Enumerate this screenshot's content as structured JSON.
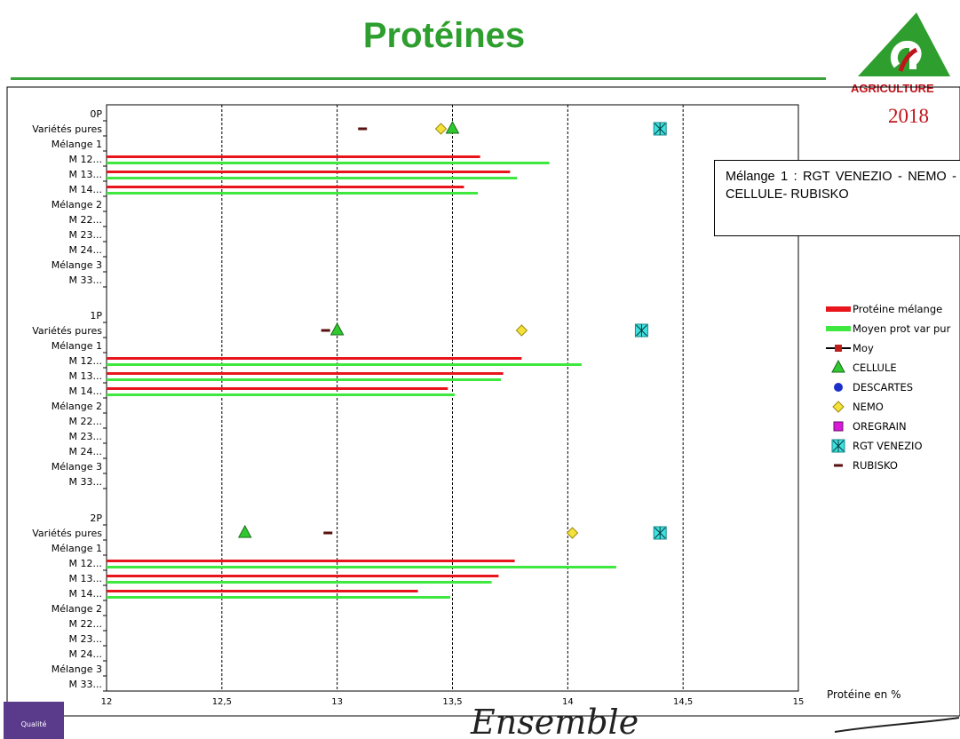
{
  "header": {
    "title": "Protéines",
    "logo_text": "AGRICULTURE",
    "year": "2018"
  },
  "annotation": "Mélange 1 : RGT VENEZIO - NEMO - CELLULE- RUBISKO",
  "footer": {
    "badge_text": "Qualité",
    "script_text": "Ensemble"
  },
  "colors": {
    "title": "#2e9e2e",
    "melange": "#e8161c",
    "var_pur": "#3ee83e",
    "moy": "#c0201c",
    "cellule": "#2fc82f",
    "descartes": "#1c2fc8",
    "nemo": "#f3e23a",
    "oregrain": "#d81ad8",
    "rgt_venezio": "#3ee0e0",
    "rubisko": "#5a1010"
  },
  "chart_data": {
    "type": "bar",
    "orientation": "horizontal",
    "title": "",
    "xlabel": "Protéine en %",
    "xlim": [
      12,
      15
    ],
    "xticks": [
      "12",
      "12,5",
      "13",
      "13,5",
      "14",
      "14,5",
      "15"
    ],
    "xtick_values": [
      12,
      12.5,
      13,
      13.5,
      14,
      14.5,
      15
    ],
    "grid": "vertical dashed",
    "legend": {
      "position": "right",
      "entries": [
        {
          "label": "Protéine mélange",
          "key": "melange",
          "marker": "bar"
        },
        {
          "label": "Moyen prot var pur",
          "key": "var_pur",
          "marker": "bar"
        },
        {
          "label": "Moy",
          "key": "moy",
          "marker": "line-square"
        },
        {
          "label": "CELLULE",
          "key": "cellule",
          "marker": "triangle"
        },
        {
          "label": "DESCARTES",
          "key": "descartes",
          "marker": "circle"
        },
        {
          "label": "NEMO",
          "key": "nemo",
          "marker": "diamond"
        },
        {
          "label": "OREGRAIN",
          "key": "oregrain",
          "marker": "square"
        },
        {
          "label": "RGT VENEZIO",
          "key": "rgt_venezio",
          "marker": "asterisk-square"
        },
        {
          "label": "RUBISKO",
          "key": "rubisko",
          "marker": "dash"
        }
      ]
    },
    "groups": [
      {
        "name": "0P",
        "categories": [
          "0P",
          "Variétés pures",
          "Mélange 1",
          "M 12...",
          "M 13...",
          "M 14...",
          "Mélange 2",
          "M 22...",
          "M 23...",
          "M 24...",
          "Mélange 3",
          "M 33..."
        ],
        "points": {
          "rubisko": 13.11,
          "nemo": 13.45,
          "cellule": 13.5,
          "rgt_venezio": 14.4
        },
        "bars": [
          {
            "category": "M 12...",
            "melange": 13.62,
            "var_pur": 13.92
          },
          {
            "category": "M 13...",
            "melange": 13.75,
            "var_pur": 13.78
          },
          {
            "category": "M 14...",
            "melange": 13.55,
            "var_pur": 13.61
          }
        ]
      },
      {
        "name": "1P",
        "categories": [
          "1P",
          "Variétés pures",
          "Mélange 1",
          "M 12...",
          "M 13...",
          "M 14...",
          "Mélange 2",
          "M 22...",
          "M 23...",
          "M 24...",
          "Mélange 3",
          "M 33..."
        ],
        "points": {
          "rubisko": 12.95,
          "cellule": 13.0,
          "nemo": 13.8,
          "rgt_venezio": 14.32
        },
        "bars": [
          {
            "category": "M 12...",
            "melange": 13.8,
            "var_pur": 14.06
          },
          {
            "category": "M 13...",
            "melange": 13.72,
            "var_pur": 13.71
          },
          {
            "category": "M 14...",
            "melange": 13.48,
            "var_pur": 13.51
          }
        ]
      },
      {
        "name": "2P",
        "categories": [
          "2P",
          "Variétés pures",
          "Mélange 1",
          "M 12...",
          "M 13...",
          "M 14...",
          "Mélange 2",
          "M 22...",
          "M 23...",
          "M 24...",
          "Mélange 3",
          "M 33..."
        ],
        "points": {
          "cellule": 12.6,
          "rubisko": 12.96,
          "nemo": 14.02,
          "rgt_venezio": 14.4
        },
        "bars": [
          {
            "category": "M 12...",
            "melange": 13.77,
            "var_pur": 14.21
          },
          {
            "category": "M 13...",
            "melange": 13.7,
            "var_pur": 13.67
          },
          {
            "category": "M 14...",
            "melange": 13.35,
            "var_pur": 13.49
          }
        ]
      }
    ]
  }
}
